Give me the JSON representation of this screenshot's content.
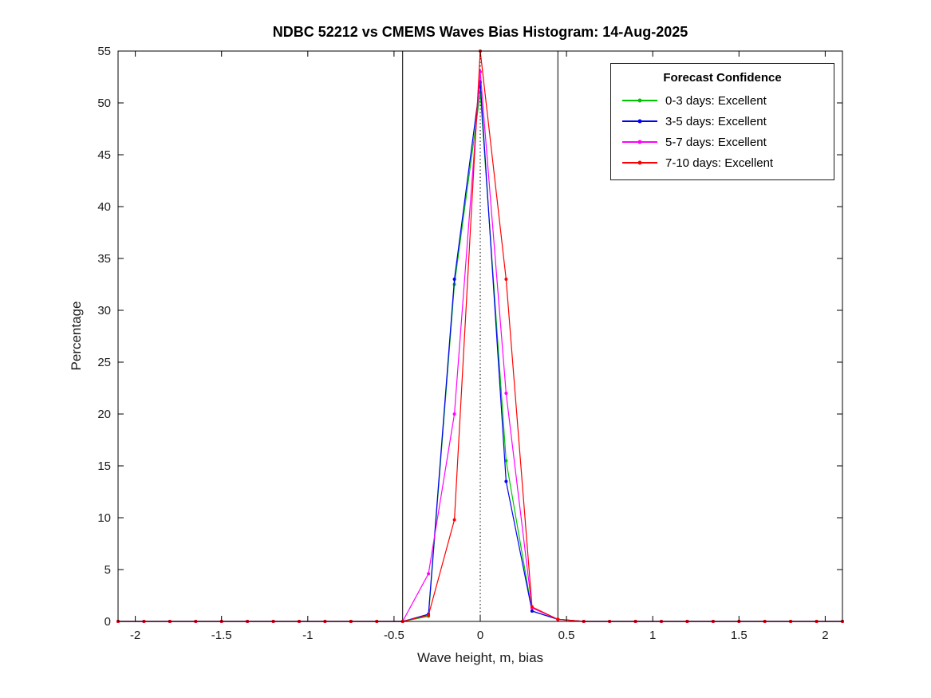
{
  "chart_data": {
    "type": "line",
    "title": "NDBC 52212 vs CMEMS Waves Bias Histogram: 14-Aug-2025",
    "xlabel": "Wave height, m, bias",
    "ylabel": "Percentage",
    "xlim": [
      -2.1,
      2.1
    ],
    "ylim": [
      0,
      55
    ],
    "grid": false,
    "xticks": [
      -2,
      -1.5,
      -1,
      -0.5,
      0,
      0.5,
      1,
      1.5,
      2
    ],
    "xtick_labels": [
      "-2",
      "-1.5",
      "-1",
      "-0.5",
      "0",
      "0.5",
      "1",
      "1.5",
      "2"
    ],
    "yticks": [
      0,
      5,
      10,
      15,
      20,
      25,
      30,
      35,
      40,
      45,
      50,
      55
    ],
    "x": [
      -2.1,
      -1.95,
      -1.8,
      -1.65,
      -1.5,
      -1.35,
      -1.2,
      -1.05,
      -0.9,
      -0.75,
      -0.6,
      -0.45,
      -0.3,
      -0.15,
      0,
      0.15,
      0.3,
      0.45,
      0.6,
      0.75,
      0.9,
      1.05,
      1.2,
      1.35,
      1.5,
      1.65,
      1.8,
      1.95,
      2.1
    ],
    "series": [
      {
        "name": "0-3 days: Excellent",
        "color": "#00c400",
        "values": [
          0,
          0,
          0,
          0,
          0,
          0,
          0,
          0,
          0,
          0,
          0,
          0,
          0.5,
          32.5,
          51,
          15.5,
          1.0,
          0.2,
          0,
          0,
          0,
          0,
          0,
          0,
          0,
          0,
          0,
          0,
          0
        ]
      },
      {
        "name": "3-5 days: Excellent",
        "color": "#0000f0",
        "values": [
          0,
          0,
          0,
          0,
          0,
          0,
          0,
          0,
          0,
          0,
          0,
          0,
          0.7,
          33,
          52,
          13.5,
          1.0,
          0.2,
          0,
          0,
          0,
          0,
          0,
          0,
          0,
          0,
          0,
          0,
          0
        ]
      },
      {
        "name": "5-7 days: Excellent",
        "color": "#ff00ff",
        "values": [
          0,
          0,
          0,
          0,
          0,
          0,
          0,
          0,
          0,
          0,
          0,
          0,
          4.6,
          20,
          53,
          22,
          1.3,
          0.2,
          0,
          0,
          0,
          0,
          0,
          0,
          0,
          0,
          0,
          0,
          0
        ]
      },
      {
        "name": "7-10 days: Excellent",
        "color": "#ff0000",
        "values": [
          0,
          0,
          0,
          0,
          0,
          0,
          0,
          0,
          0,
          0,
          0,
          0,
          0.6,
          9.8,
          55,
          33,
          1.4,
          0.2,
          0,
          0,
          0,
          0,
          0,
          0,
          0,
          0,
          0,
          0,
          0
        ]
      }
    ],
    "vlines": [
      {
        "x": -0.45,
        "style": "solid",
        "color": "#000000"
      },
      {
        "x": 0,
        "style": "dotted",
        "color": "#000000"
      },
      {
        "x": 0.45,
        "style": "solid",
        "color": "#000000"
      }
    ],
    "legend": {
      "title": "Forecast Confidence",
      "position": "top-right"
    }
  }
}
